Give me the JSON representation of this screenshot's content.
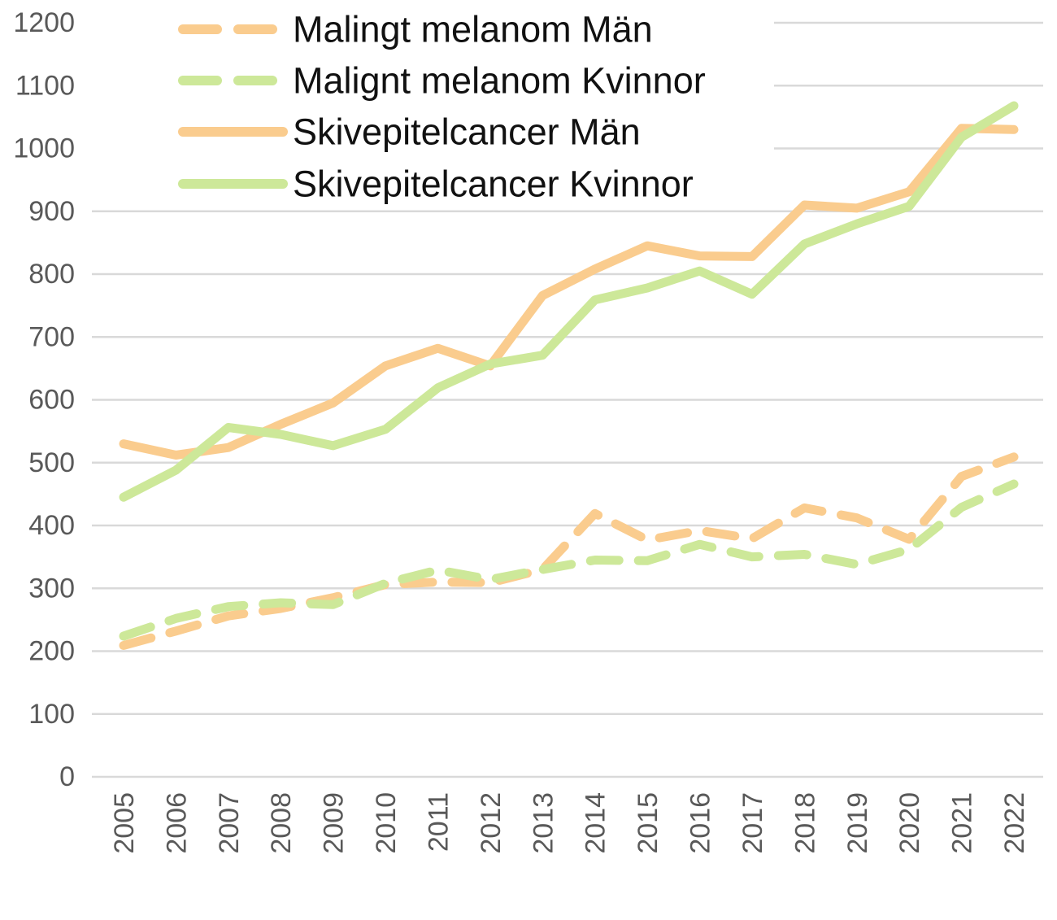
{
  "chart_data": {
    "type": "line",
    "title": "",
    "xlabel": "",
    "ylabel": "",
    "categories": [
      "2005",
      "2006",
      "2007",
      "2008",
      "2009",
      "2010",
      "2011",
      "2012",
      "2013",
      "2014",
      "2015",
      "2016",
      "2017",
      "2018",
      "2019",
      "2020",
      "2021",
      "2022"
    ],
    "series": [
      {
        "name": "Malingt melanom Män",
        "color": "#FACC8E",
        "dash": true,
        "values": [
          209,
          232,
          256,
          268,
          285,
          306,
          310,
          309,
          330,
          419,
          377,
          392,
          379,
          428,
          412,
          378,
          478,
          509
        ]
      },
      {
        "name": "Malignt melanom Kvinnor",
        "color": "#CDE899",
        "dash": true,
        "values": [
          224,
          252,
          271,
          277,
          274,
          308,
          329,
          314,
          330,
          345,
          344,
          370,
          350,
          354,
          338,
          362,
          429,
          466
        ]
      },
      {
        "name": "Skivepitelcancer Män",
        "color": "#FACC8E",
        "dash": false,
        "values": [
          530,
          512,
          524,
          561,
          595,
          654,
          682,
          654,
          766,
          808,
          845,
          829,
          828,
          910,
          905,
          931,
          1032,
          1030
        ]
      },
      {
        "name": "Skivepitelcancer Kvinnor",
        "color": "#CDE899",
        "dash": false,
        "values": [
          445,
          488,
          556,
          545,
          527,
          553,
          619,
          657,
          671,
          759,
          778,
          805,
          768,
          848,
          880,
          908,
          1018,
          1068
        ]
      }
    ],
    "ylim": [
      0,
      1200
    ],
    "y_tick_step": 100,
    "y_ticks": [
      "0",
      "100",
      "200",
      "300",
      "400",
      "500",
      "600",
      "700",
      "800",
      "900",
      "1000",
      "1100",
      "1200"
    ],
    "grid": true,
    "legend_position": "top-left",
    "colors": {
      "gridline": "#D9D9D9",
      "axis_text": "#595959",
      "legend_text": "#111111",
      "background": "#FFFFFF"
    }
  }
}
